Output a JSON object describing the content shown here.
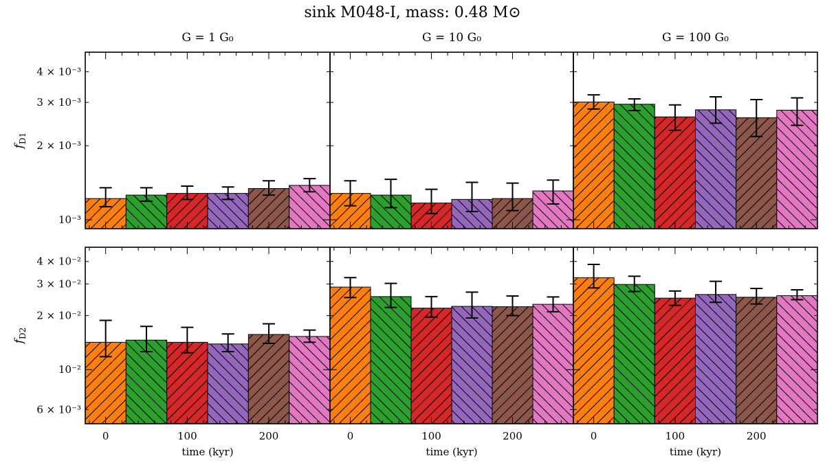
{
  "figure": {
    "title": "sink M048-I, mass: 0.48 M⊙"
  },
  "chart_data": {
    "type": "bar",
    "layout": "2x3 grid of bar panels, log y-axis, shared x-axis",
    "columns": [
      "G = 1 G₀",
      "G = 10 G₀",
      "G = 100 G₀"
    ],
    "rows": [
      {
        "ylabel": "f_D1",
        "yscale": "log",
        "ylim": [
          0.00092,
          0.0048
        ],
        "yticks": [
          {
            "value": 0.001,
            "label": "10⁻³"
          },
          {
            "value": 0.002,
            "label": "2 × 10⁻³"
          },
          {
            "value": 0.003,
            "label": "3 × 10⁻³"
          },
          {
            "value": 0.004,
            "label": "4 × 10⁻³"
          }
        ]
      },
      {
        "ylabel": "f_D2",
        "yscale": "log",
        "ylim": [
          0.005,
          0.048
        ],
        "yticks": [
          {
            "value": 0.006,
            "label": "6 × 10⁻³"
          },
          {
            "value": 0.01,
            "label": "10⁻²"
          },
          {
            "value": 0.02,
            "label": "2 × 10⁻²"
          },
          {
            "value": 0.03,
            "label": "3 × 10⁻²"
          },
          {
            "value": 0.04,
            "label": "4 × 10⁻²"
          }
        ]
      }
    ],
    "xlabel": "time (kyr)",
    "xlim": [
      -25,
      275
    ],
    "xticks": [
      0,
      100,
      200
    ],
    "bar_times": [
      0,
      50,
      100,
      150,
      200,
      250
    ],
    "bar_width": 50,
    "bar_colors": [
      "#ff7f0e",
      "#2ca02c",
      "#d62728",
      "#9467bd",
      "#8c564b",
      "#e377c2"
    ],
    "bar_hatch": [
      "/",
      "\\",
      "/",
      "\\",
      "/",
      "\\"
    ],
    "panels": [
      {
        "row": 0,
        "col": 0,
        "values": [
          0.00122,
          0.00126,
          0.00128,
          0.00128,
          0.00134,
          0.00138
        ],
        "err_low": [
          0.00113,
          0.00119,
          0.00121,
          0.00121,
          0.00126,
          0.0013
        ],
        "err_high": [
          0.00135,
          0.00135,
          0.00137,
          0.00136,
          0.00144,
          0.00147
        ]
      },
      {
        "row": 0,
        "col": 1,
        "values": [
          0.00128,
          0.00126,
          0.00117,
          0.00121,
          0.00122,
          0.00131
        ],
        "err_low": [
          0.00114,
          0.00112,
          0.00106,
          0.00108,
          0.00109,
          0.00116
        ],
        "err_high": [
          0.00144,
          0.00146,
          0.00133,
          0.00142,
          0.00141,
          0.00145
        ]
      },
      {
        "row": 0,
        "col": 2,
        "values": [
          0.00301,
          0.00295,
          0.00262,
          0.0028,
          0.0026,
          0.00279
        ],
        "err_low": [
          0.00282,
          0.00278,
          0.00231,
          0.00247,
          0.00218,
          0.00242
        ],
        "err_high": [
          0.00322,
          0.0031,
          0.00293,
          0.00316,
          0.00308,
          0.00313
        ]
      },
      {
        "row": 1,
        "col": 0,
        "values": [
          0.0142,
          0.0146,
          0.0142,
          0.0139,
          0.0157,
          0.0153
        ],
        "err_low": [
          0.0118,
          0.0126,
          0.0124,
          0.0126,
          0.014,
          0.0142
        ],
        "err_high": [
          0.0188,
          0.0174,
          0.0172,
          0.0158,
          0.018,
          0.0166
        ]
      },
      {
        "row": 1,
        "col": 1,
        "values": [
          0.0288,
          0.0255,
          0.022,
          0.0225,
          0.0224,
          0.0231
        ],
        "err_low": [
          0.0252,
          0.0222,
          0.0196,
          0.0194,
          0.02,
          0.021
        ],
        "err_high": [
          0.0325,
          0.0302,
          0.0255,
          0.027,
          0.0257,
          0.0254
        ]
      },
      {
        "row": 1,
        "col": 2,
        "values": [
          0.0325,
          0.0298,
          0.025,
          0.0262,
          0.0253,
          0.0258
        ],
        "err_low": [
          0.0285,
          0.0272,
          0.0228,
          0.0237,
          0.0232,
          0.0245
        ],
        "err_high": [
          0.0385,
          0.0331,
          0.0274,
          0.031,
          0.0283,
          0.0278
        ]
      }
    ]
  }
}
